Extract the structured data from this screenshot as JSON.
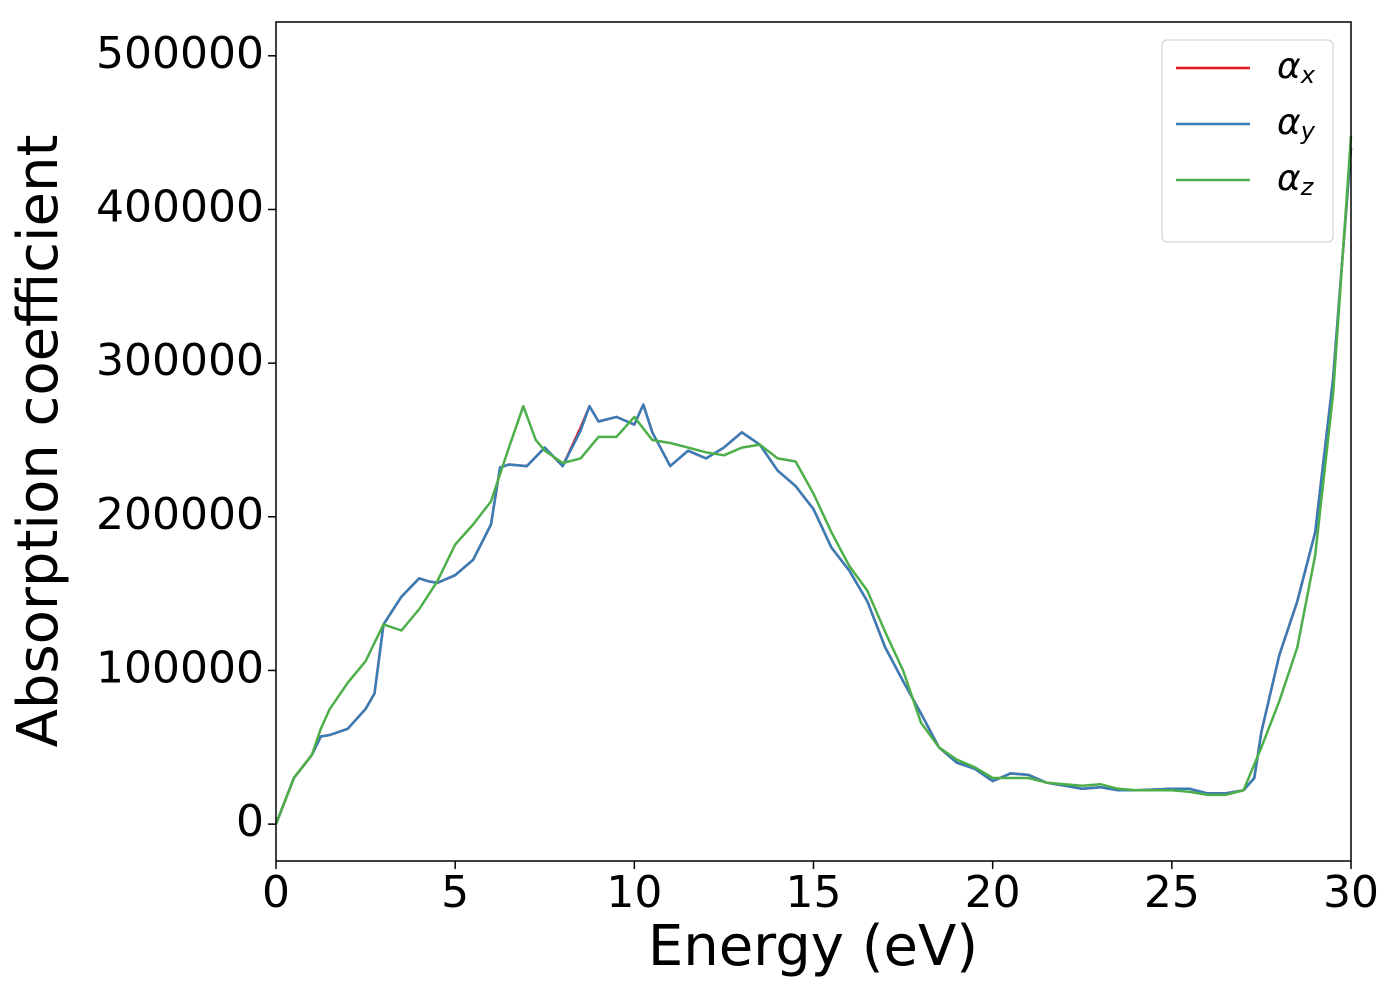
{
  "chart_data": {
    "type": "line",
    "x_label": "Energy (eV)",
    "y_label": "Absorption coefficient",
    "xlim": [
      0,
      30
    ],
    "xticks": [
      0,
      5,
      10,
      15,
      20,
      25,
      30
    ],
    "ylim": [
      -24000,
      522000
    ],
    "yticks": [
      0,
      100000,
      200000,
      300000,
      400000,
      500000
    ],
    "legend": "upper right",
    "series": [
      {
        "name": "αx",
        "color": "#e41a1c",
        "x": [
          0,
          0.5,
          1,
          1.25,
          1.5,
          2,
          2.5,
          2.75,
          3,
          3.5,
          4,
          4.25,
          4.5,
          5,
          5.5,
          6,
          6.25,
          6.5,
          7,
          7.5,
          8,
          8.5,
          8.75,
          9,
          9.5,
          10,
          10.25,
          10.5,
          11,
          11.5,
          12,
          12.5,
          13,
          13.5,
          14,
          14.5,
          15,
          15.5,
          16,
          16.5,
          17,
          17.5,
          18,
          18.5,
          19,
          19.5,
          20,
          20.5,
          21,
          21.5,
          22,
          22.5,
          23,
          23.5,
          24,
          25,
          25.5,
          26,
          26.5,
          27,
          27.3,
          27.5,
          28,
          28.5,
          29,
          29.5,
          30
        ],
        "values": [
          0,
          30000,
          45000,
          57000,
          58000,
          62000,
          75000,
          85000,
          130000,
          148000,
          160000,
          158000,
          157000,
          162000,
          172000,
          195000,
          232000,
          234000,
          233000,
          245000,
          233000,
          258000,
          272000,
          262000,
          265000,
          260000,
          273000,
          255000,
          233000,
          243000,
          238000,
          245000,
          255000,
          247000,
          230000,
          220000,
          205000,
          180000,
          165000,
          145000,
          115000,
          93000,
          72000,
          50000,
          40000,
          36000,
          28000,
          33000,
          32000,
          27000,
          25000,
          23000,
          24000,
          22000,
          22000,
          23000,
          23000,
          20000,
          20000,
          22000,
          30000,
          60000,
          110000,
          145000,
          190000,
          290000,
          440000
        ]
      },
      {
        "name": "αy",
        "color": "#377eb8",
        "x": [
          0,
          0.5,
          1,
          1.25,
          1.5,
          2,
          2.5,
          2.75,
          3,
          3.5,
          4,
          4.25,
          4.5,
          5,
          5.5,
          6,
          6.25,
          6.5,
          7,
          7.5,
          8,
          8.5,
          8.75,
          9,
          9.5,
          10,
          10.25,
          10.5,
          11,
          11.5,
          12,
          12.5,
          13,
          13.5,
          14,
          14.5,
          15,
          15.5,
          16,
          16.5,
          17,
          17.5,
          18,
          18.5,
          19,
          19.5,
          20,
          20.5,
          21,
          21.5,
          22,
          22.5,
          23,
          23.5,
          24,
          25,
          25.5,
          26,
          26.5,
          27,
          27.3,
          27.5,
          28,
          28.5,
          29,
          29.5,
          30
        ],
        "values": [
          0,
          30000,
          45000,
          57000,
          58000,
          62000,
          75000,
          85000,
          130000,
          148000,
          160000,
          158000,
          157000,
          162000,
          172000,
          195000,
          232000,
          234000,
          233000,
          245000,
          233000,
          256000,
          272000,
          262000,
          265000,
          260000,
          273000,
          255000,
          233000,
          243000,
          238000,
          245000,
          255000,
          247000,
          230000,
          220000,
          205000,
          180000,
          165000,
          145000,
          115000,
          93000,
          72000,
          50000,
          40000,
          36000,
          28000,
          33000,
          32000,
          27000,
          25000,
          23000,
          24000,
          22000,
          22000,
          23000,
          23000,
          20000,
          20000,
          22000,
          30000,
          60000,
          110000,
          145000,
          190000,
          290000,
          440000
        ]
      },
      {
        "name": "αz",
        "color": "#4daf4a",
        "x": [
          0,
          0.5,
          1,
          1.25,
          1.5,
          2,
          2.5,
          2.75,
          3,
          3.5,
          4,
          4.5,
          5,
          5.5,
          6,
          6.5,
          6.9,
          7.25,
          7.5,
          8,
          8.5,
          9,
          9.5,
          10,
          10.5,
          11,
          11.5,
          12,
          12.5,
          13,
          13.5,
          14,
          14.5,
          15,
          15.5,
          16,
          16.5,
          17,
          17.5,
          18,
          18.5,
          19,
          19.5,
          20,
          20.5,
          21,
          21.5,
          22,
          22.5,
          23,
          23.5,
          24,
          25,
          25.5,
          26,
          26.5,
          27,
          27.5,
          28,
          28.5,
          29,
          29.5,
          30
        ],
        "values": [
          0,
          30000,
          45000,
          62000,
          75000,
          92000,
          106000,
          118000,
          130000,
          126000,
          140000,
          158000,
          182000,
          195000,
          210000,
          245000,
          272000,
          250000,
          243000,
          235000,
          238000,
          252000,
          252000,
          265000,
          250000,
          248000,
          245000,
          242000,
          240000,
          245000,
          247000,
          238000,
          236000,
          215000,
          190000,
          168000,
          152000,
          125000,
          100000,
          66000,
          50000,
          42000,
          37000,
          30000,
          30000,
          30000,
          27000,
          26000,
          25000,
          26000,
          23000,
          22000,
          22000,
          21000,
          19000,
          19000,
          22000,
          50000,
          80000,
          115000,
          175000,
          280000,
          448000
        ]
      }
    ]
  }
}
